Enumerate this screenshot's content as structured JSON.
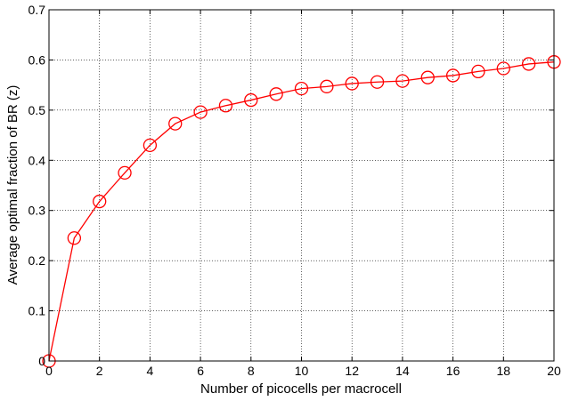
{
  "chart_data": {
    "type": "line",
    "title": "",
    "xlabel": "Number of picocells per macrocell",
    "ylabel": "Average optimal fraction of BR (z)",
    "xlim": [
      0,
      20
    ],
    "ylim": [
      0,
      0.7
    ],
    "xticks": [
      0,
      2,
      4,
      6,
      8,
      10,
      12,
      14,
      16,
      18,
      20
    ],
    "yticks": [
      0,
      0.1,
      0.2,
      0.3,
      0.4,
      0.5,
      0.6,
      0.7
    ],
    "xtick_labels": [
      "0",
      "2",
      "4",
      "6",
      "8",
      "10",
      "12",
      "14",
      "16",
      "18",
      "20"
    ],
    "ytick_labels": [
      "0",
      "0.1",
      "0.2",
      "0.3",
      "0.4",
      "0.5",
      "0.6",
      "0.7"
    ],
    "grid": true,
    "legend": "none",
    "series": [
      {
        "color": "#ff0000",
        "marker": "circle",
        "x": [
          0,
          1,
          2,
          3,
          4,
          5,
          6,
          7,
          8,
          9,
          10,
          11,
          12,
          13,
          14,
          15,
          16,
          17,
          18,
          19,
          20
        ],
        "y": [
          0.0,
          0.245,
          0.318,
          0.375,
          0.43,
          0.473,
          0.496,
          0.509,
          0.52,
          0.532,
          0.543,
          0.547,
          0.553,
          0.556,
          0.558,
          0.565,
          0.569,
          0.577,
          0.583,
          0.592,
          0.596
        ]
      }
    ]
  }
}
